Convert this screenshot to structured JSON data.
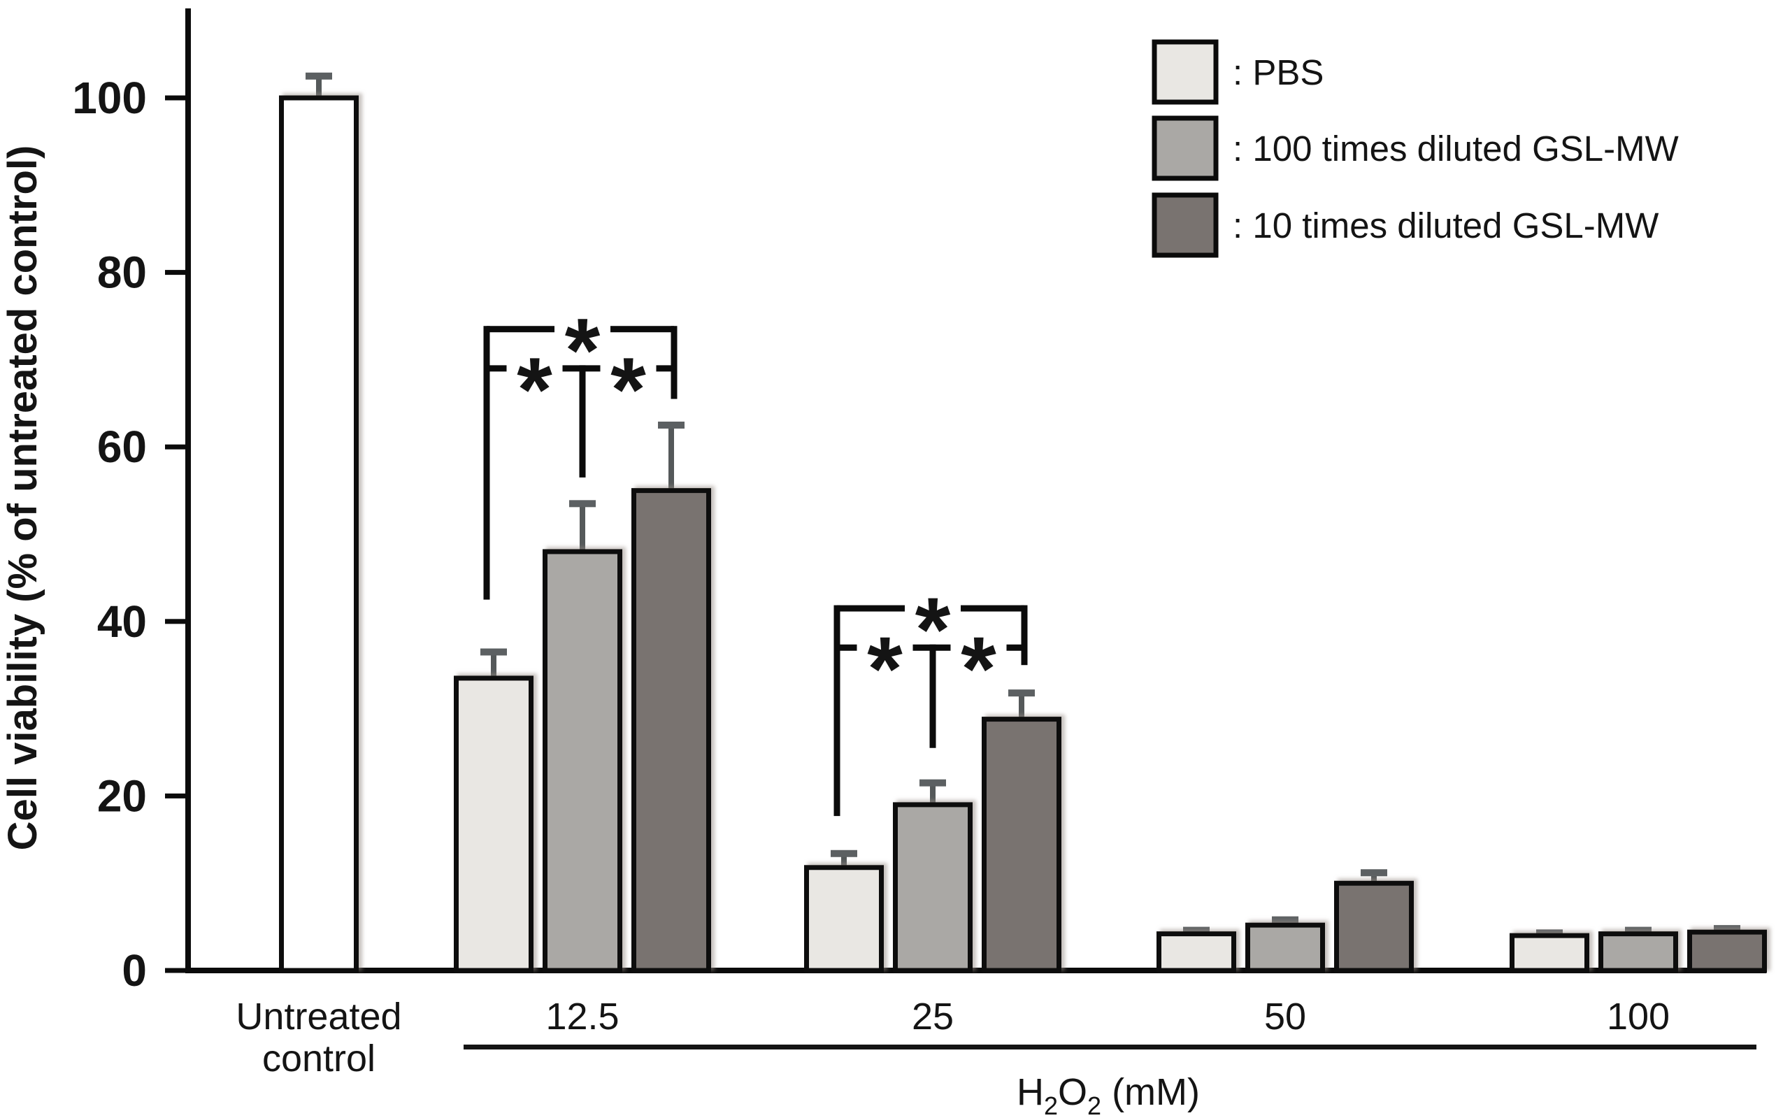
{
  "chart_data": {
    "type": "bar",
    "title": "",
    "ylabel": "Cell viability (% of untreated control)",
    "xlabel": "H₂O₂ (mM)",
    "ylim": [
      0,
      110
    ],
    "yticks": [
      0,
      20,
      40,
      60,
      80,
      100
    ],
    "grid": "off",
    "error_bars": "upper caps only",
    "categories": [
      "Untreated control",
      "12.5",
      "25",
      "50",
      "100"
    ],
    "category_label_lines": [
      [
        "Untreated",
        "control"
      ],
      [
        "12.5"
      ],
      [
        "25"
      ],
      [
        "50"
      ],
      [
        "100"
      ]
    ],
    "x_axis_group": {
      "label": "H₂O₂ (mM)",
      "applies_to": [
        "12.5",
        "25",
        "50",
        "100"
      ]
    },
    "control_bar": {
      "category": "Untreated control",
      "value": 100,
      "error": 2.5,
      "color": "#ffffff"
    },
    "series": [
      {
        "name": "PBS",
        "color": "#e9e7e3",
        "values": [
          null,
          33.5,
          11.8,
          4.2,
          4.0
        ],
        "errors": [
          null,
          3.0,
          1.6,
          0.4,
          0.3
        ]
      },
      {
        "name": "100 times diluted GSL-MW",
        "color": "#aaa8a5",
        "values": [
          null,
          48,
          19,
          5.2,
          4.2
        ],
        "errors": [
          null,
          5.5,
          2.5,
          0.6,
          0.4
        ]
      },
      {
        "name": "10 times diluted GSL-MW",
        "color": "#797370",
        "values": [
          null,
          55,
          28.8,
          10,
          4.4
        ],
        "errors": [
          null,
          7.5,
          3.0,
          1.2,
          0.4
        ]
      }
    ],
    "legend": {
      "position": "top-right",
      "items": [
        {
          "swatch_color": "#e9e7e3",
          "label": ": PBS"
        },
        {
          "swatch_color": "#aaa8a5",
          "label": ": 100 times diluted GSL-MW"
        },
        {
          "swatch_color": "#797370",
          "label": ": 10 times diluted GSL-MW"
        }
      ]
    },
    "significance": [
      {
        "category": "12.5",
        "top_bracket": {
          "compares": [
            "PBS",
            "10 times diluted GSL-MW"
          ],
          "star": "*",
          "y": 73.5,
          "left_drop_to": 42.5,
          "right_drop_to": 65.5
        },
        "mid_bracket": {
          "compares_left": [
            "PBS",
            "100 times diluted GSL-MW"
          ],
          "compares_right": [
            "100 times diluted GSL-MW",
            "10 times diluted GSL-MW"
          ],
          "stars": [
            "*",
            "*"
          ],
          "y": 69,
          "center_drop_to": 56.5
        }
      },
      {
        "category": "25",
        "top_bracket": {
          "compares": [
            "PBS",
            "10 times diluted GSL-MW"
          ],
          "star": "*",
          "y": 41.5,
          "left_drop_to": 17.7,
          "right_drop_to": 35
        },
        "mid_bracket": {
          "compares_left": [
            "PBS",
            "100 times diluted GSL-MW"
          ],
          "compares_right": [
            "100 times diluted GSL-MW",
            "10 times diluted GSL-MW"
          ],
          "stars": [
            "*",
            "*"
          ],
          "y": 37,
          "center_drop_to": 25.5
        }
      }
    ]
  }
}
